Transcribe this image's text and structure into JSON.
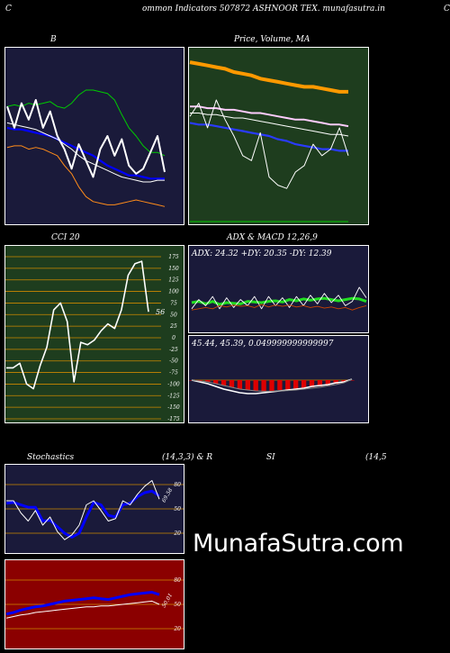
{
  "header": {
    "left_letter": "C",
    "title": "ommon  Indicators 507872  ASHNOOR TEX. munafasutra.in",
    "right_letter": "C"
  },
  "watermark": "MunafaSutra.com",
  "chart_data": [
    {
      "type": "line",
      "panel": "bollinger",
      "title": "B",
      "background": "#1a1a3a",
      "ylim": [
        0,
        100
      ],
      "series": [
        {
          "color": "#00cc00",
          "values": [
            68,
            69,
            68,
            70,
            69,
            70,
            71,
            68,
            67,
            70,
            75,
            78,
            78,
            77,
            76,
            72,
            63,
            55,
            50,
            44,
            40,
            40,
            38
          ]
        },
        {
          "color": "#0000ff",
          "values": [
            55,
            54,
            54,
            53,
            52,
            51,
            50,
            48,
            46,
            44,
            42,
            40,
            38,
            35,
            32,
            30,
            28,
            26,
            26,
            25,
            24,
            24,
            24
          ]
        },
        {
          "color": "#ffffff",
          "values": [
            58,
            57,
            56,
            55,
            54,
            52,
            50,
            48,
            45,
            42,
            38,
            35,
            33,
            31,
            29,
            27,
            25,
            24,
            23,
            22,
            22,
            23,
            23
          ]
        },
        {
          "color": "#ff8c1a",
          "values": [
            43,
            44,
            44,
            42,
            43,
            42,
            40,
            38,
            32,
            27,
            19,
            13,
            10,
            9,
            8,
            8,
            9,
            10,
            11,
            10,
            9,
            8,
            7
          ]
        },
        {
          "color": "#ffffff",
          "values": [
            68,
            55,
            70,
            60,
            72,
            55,
            65,
            50,
            42,
            30,
            45,
            35,
            25,
            42,
            50,
            38,
            48,
            32,
            27,
            30,
            40,
            50,
            28
          ]
        }
      ]
    },
    {
      "type": "line",
      "panel": "price_ma",
      "title": "Price,  Volume,  MA",
      "background": "#1e3d1e",
      "ylim": [
        0,
        100
      ],
      "series": [
        {
          "color": "#ff9900",
          "values": [
            95,
            94,
            93,
            92,
            91,
            89,
            88,
            87,
            85,
            84,
            83,
            82,
            81,
            80,
            80,
            79,
            78,
            77,
            77
          ]
        },
        {
          "color": "#ffccff",
          "values": [
            68,
            68,
            67,
            67,
            66,
            66,
            65,
            64,
            64,
            63,
            62,
            61,
            60,
            60,
            59,
            58,
            57,
            57,
            56
          ]
        },
        {
          "color": "#ffffff",
          "values": [
            64,
            64,
            63,
            63,
            62,
            61,
            61,
            60,
            59,
            58,
            57,
            56,
            55,
            54,
            53,
            52,
            51,
            51,
            50
          ]
        },
        {
          "color": "#2a3bff",
          "values": [
            58,
            57,
            57,
            56,
            55,
            54,
            53,
            52,
            51,
            50,
            48,
            47,
            45,
            44,
            43,
            42,
            42,
            41,
            41
          ]
        },
        {
          "color": "#ffffff",
          "values": [
            62,
            70,
            55,
            72,
            60,
            50,
            38,
            35,
            52,
            25,
            20,
            18,
            28,
            32,
            45,
            38,
            42,
            55,
            38
          ]
        }
      ]
    },
    {
      "type": "line",
      "panel": "cci",
      "title": "CCI 20",
      "background": "#1e3d1e",
      "ylim": [
        -175,
        175
      ],
      "yticks": [
        "175",
        "150",
        "125",
        "100",
        "75",
        "50",
        "25",
        "0",
        "-25",
        "-50",
        "-75",
        "-100",
        "-125",
        "-150",
        "-175"
      ],
      "last_value_label": "56",
      "values": [
        -65,
        -65,
        -55,
        -100,
        -110,
        -60,
        -20,
        60,
        75,
        35,
        -95,
        -10,
        -15,
        -5,
        15,
        30,
        20,
        60,
        135,
        160,
        165,
        56
      ]
    },
    {
      "type": "line",
      "panel": "adx",
      "title": "ADX  & MACD 12,26,9",
      "adx_label": "ADX: 24.32  +DY: 20.35 -DY: 12.39",
      "background": "#1a1a3a",
      "ylim": [
        0,
        100
      ],
      "series": [
        {
          "color": "#22dd22",
          "values": [
            50,
            52,
            48,
            52,
            47,
            50,
            49,
            48,
            52,
            51,
            50,
            52,
            53,
            51,
            55,
            53,
            56,
            54,
            56,
            57,
            55,
            53,
            55,
            57,
            56,
            52
          ]
        },
        {
          "color": "#ffffff",
          "values": [
            40,
            55,
            45,
            60,
            40,
            58,
            42,
            55,
            45,
            60,
            40,
            60,
            45,
            58,
            42,
            60,
            45,
            62,
            48,
            65,
            50,
            62,
            45,
            52,
            75,
            58
          ]
        },
        {
          "color": "#cc4400",
          "values": [
            38,
            40,
            42,
            40,
            45,
            43,
            46,
            44,
            45,
            42,
            47,
            43,
            46,
            44,
            46,
            43,
            45,
            42,
            44,
            41,
            43,
            40,
            42,
            38,
            42,
            45
          ]
        }
      ]
    },
    {
      "type": "bar",
      "panel": "macd",
      "macd_label": "45.44,  45.39,  0.049999999999997",
      "background": "#1a1a3a",
      "ylim": [
        -1,
        1
      ],
      "histogram": [
        0.0,
        -0.05,
        -0.1,
        -0.2,
        -0.3,
        -0.4,
        -0.5,
        -0.55,
        -0.6,
        -0.65,
        -0.6,
        -0.55,
        -0.55,
        -0.5,
        -0.45,
        -0.4,
        -0.35,
        -0.3,
        -0.2,
        -0.1,
        0.0
      ],
      "macd_line": [
        0.0,
        -0.1,
        -0.2,
        -0.35,
        -0.5,
        -0.6,
        -0.7,
        -0.75,
        -0.75,
        -0.7,
        -0.65,
        -0.6,
        -0.55,
        -0.5,
        -0.45,
        -0.35,
        -0.3,
        -0.25,
        -0.15,
        -0.1,
        0.05
      ],
      "signal_line": [
        0.0,
        -0.05,
        -0.1,
        -0.2,
        -0.3,
        -0.4,
        -0.5,
        -0.55,
        -0.6,
        -0.62,
        -0.62,
        -0.6,
        -0.58,
        -0.55,
        -0.5,
        -0.45,
        -0.4,
        -0.32,
        -0.25,
        -0.15,
        0.05
      ]
    },
    {
      "type": "line",
      "panel": "stochastics",
      "title": "Stochastics",
      "params": "(14,3,3) & R",
      "background": "#1a1a3a",
      "ylim": [
        0,
        100
      ],
      "yticks": [
        "80",
        "50",
        "20"
      ],
      "last_value_label": "69.58",
      "series": [
        {
          "color": "#0000ff",
          "values": [
            57,
            58,
            55,
            52,
            52,
            35,
            36,
            28,
            20,
            15,
            20,
            40,
            58,
            55,
            42,
            40,
            55,
            57,
            65,
            70,
            72,
            66
          ]
        },
        {
          "color": "#ffffff",
          "values": [
            60,
            60,
            45,
            35,
            48,
            30,
            40,
            22,
            12,
            18,
            30,
            55,
            60,
            48,
            35,
            38,
            60,
            55,
            68,
            78,
            85,
            62
          ]
        }
      ]
    },
    {
      "type": "line",
      "panel": "rsi",
      "title": "SI",
      "params": "(14,5",
      "background": "#8b0000",
      "ylim": [
        0,
        100
      ],
      "yticks": [
        "80",
        "50",
        "20"
      ],
      "last_value_label": "50.01",
      "series": [
        {
          "color": "#0000ff",
          "values": [
            38,
            40,
            43,
            45,
            47,
            48,
            50,
            52,
            54,
            55,
            56,
            57,
            58,
            57,
            56,
            58,
            60,
            62,
            63,
            64,
            65,
            62
          ]
        },
        {
          "color": "#ffffff",
          "values": [
            33,
            35,
            37,
            38,
            40,
            41,
            42,
            43,
            44,
            45,
            46,
            47,
            47,
            48,
            48,
            49,
            50,
            51,
            52,
            53,
            54,
            50
          ]
        }
      ]
    }
  ]
}
